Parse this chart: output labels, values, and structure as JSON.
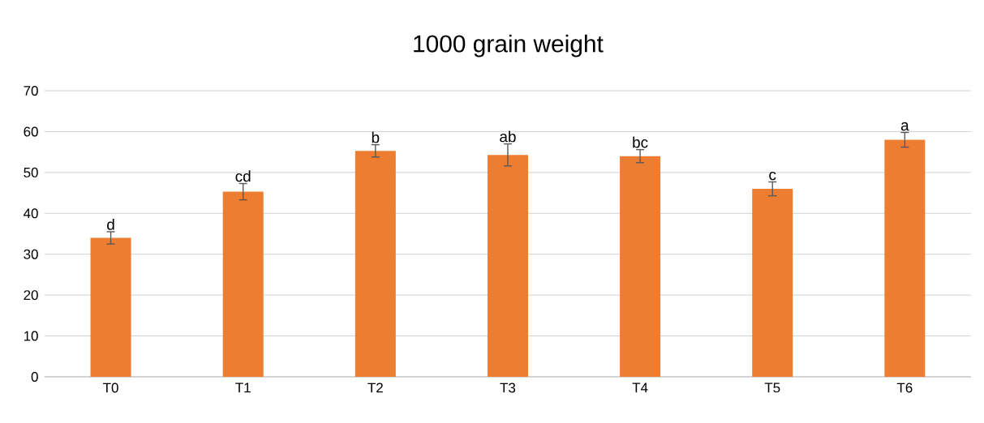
{
  "chart_data": {
    "type": "bar",
    "title": "1000 grain weight",
    "categories": [
      "T0",
      "T1",
      "T2",
      "T3",
      "T4",
      "T5",
      "T6"
    ],
    "values": [
      34.0,
      45.3,
      55.3,
      54.3,
      54.0,
      46.0,
      58.0
    ],
    "errors": [
      1.5,
      2.0,
      1.5,
      2.7,
      1.6,
      1.7,
      1.8
    ],
    "color": "#ed7d31",
    "ylim": [
      0,
      70
    ],
    "yticks": [
      0,
      10,
      20,
      30,
      40,
      50,
      60,
      70
    ],
    "grid": "y",
    "annotations": [
      {
        "text": "d",
        "x": "T0",
        "y": 35.5
      },
      {
        "text": "cd",
        "x": "T1",
        "y": 47.3
      },
      {
        "text": "b",
        "x": "T2",
        "y": 56.8
      },
      {
        "text": "ab",
        "x": "T3",
        "y": 57.0
      },
      {
        "text": "bc",
        "x": "T4",
        "y": 55.6
      },
      {
        "text": "c",
        "x": "T5",
        "y": 47.7
      },
      {
        "text": "a",
        "x": "T6",
        "y": 59.8
      }
    ]
  }
}
